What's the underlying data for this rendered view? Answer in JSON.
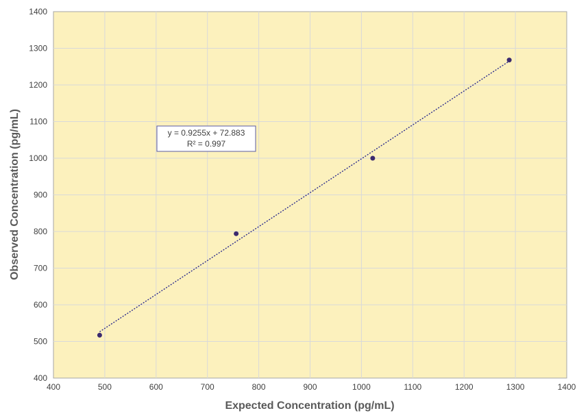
{
  "chart_data": {
    "type": "scatter",
    "title": "",
    "xlabel": "Expected Concentration (pg/mL)",
    "ylabel": "Observed Concentration (pg/mL)",
    "xlim": [
      400,
      1400
    ],
    "ylim": [
      400,
      1400
    ],
    "xticks": [
      "400",
      "500",
      "600",
      "700",
      "800",
      "900",
      "1000",
      "1100",
      "1200",
      "1300",
      "1400"
    ],
    "yticks": [
      "400",
      "500",
      "600",
      "700",
      "800",
      "900",
      "1000",
      "1100",
      "1200",
      "1300",
      "1400"
    ],
    "grid": true,
    "plot_background": "#fcf1bd",
    "grid_color": "#d9d9d9",
    "series": [
      {
        "points": [
          {
            "x": 490,
            "y": 517
          },
          {
            "x": 756,
            "y": 794
          },
          {
            "x": 1022,
            "y": 1000
          },
          {
            "x": 1288,
            "y": 1268
          }
        ],
        "color": "#3b2a6f"
      }
    ],
    "trendline": {
      "type": "linear",
      "slope": 0.9255,
      "intercept": 72.883,
      "x_range": [
        490,
        1288
      ],
      "color": "#2a2a8c",
      "equation_text": "y = 0.9255x + 72.883",
      "r2_text": "R² = 0.997"
    }
  }
}
